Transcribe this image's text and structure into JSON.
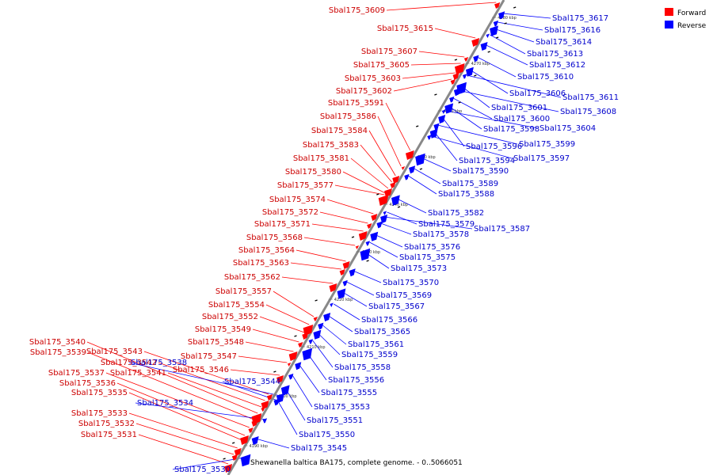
{
  "caption": "Shewanella baltica BA175, complete genome. - 0..5066051",
  "legend": [
    {
      "label": "Forward",
      "color": "#ff0000"
    },
    {
      "label": "Reverse",
      "color": "#0000ff"
    }
  ],
  "colors": {
    "forward": "#ff0000",
    "reverse": "#0000ff",
    "axis": "#888888"
  },
  "ticks": [
    "4190 kbp",
    "4200 kbp",
    "4210 kbp",
    "4220 kbp",
    "4230 kbp",
    "4240 kbp",
    "4250 kbp",
    "4260 kbp",
    "4270 kbp",
    "4280 kbp"
  ],
  "forward_genes": [
    "Sbal175_3609",
    "Sbal175_3615",
    "Sbal175_3607",
    "Sbal175_3605",
    "Sbal175_3603",
    "Sbal175_3602",
    "Sbal175_3591",
    "Sbal175_3586",
    "Sbal175_3584",
    "Sbal175_3583",
    "Sbal175_3581",
    "Sbal175_3580",
    "Sbal175_3577",
    "Sbal175_3574",
    "Sbal175_3572",
    "Sbal175_3571",
    "Sbal175_3568",
    "Sbal175_3564",
    "Sbal175_3563",
    "Sbal175_3562",
    "Sbal175_3557",
    "Sbal175_3554",
    "Sbal175_3552",
    "Sbal175_3549",
    "Sbal175_3548",
    "Sbal175_3547",
    "Sbal175_3546",
    "Sbal175_3543",
    "Sbal175_3542",
    "Sbal175_3541",
    "Sbal175_3540",
    "Sbal175_3539",
    "Sbal175_3537",
    "Sbal175_3536",
    "Sbal175_3535",
    "Sbal175_3533",
    "Sbal175_3532",
    "Sbal175_3531"
  ],
  "reverse_genes": [
    "Sbal175_3617",
    "Sbal175_3616",
    "Sbal175_3614",
    "Sbal175_3613",
    "Sbal175_3612",
    "Sbal175_3610",
    "Sbal175_3606",
    "Sbal175_3611",
    "Sbal175_3601",
    "Sbal175_3608",
    "Sbal175_3600",
    "Sbal175_3598",
    "Sbal175_3604",
    "Sbal175_3596",
    "Sbal175_3599",
    "Sbal175_3594",
    "Sbal175_3597",
    "Sbal175_3590",
    "Sbal175_3589",
    "Sbal175_3588",
    "Sbal175_3582",
    "Sbal175_3579",
    "Sbal175_3587",
    "Sbal175_3578",
    "Sbal175_3576",
    "Sbal175_3575",
    "Sbal175_3573",
    "Sbal175_3570",
    "Sbal175_3569",
    "Sbal175_3567",
    "Sbal175_3566",
    "Sbal175_3565",
    "Sbal175_3561",
    "Sbal175_3559",
    "Sbal175_3558",
    "Sbal175_3556",
    "Sbal175_3555",
    "Sbal175_3553",
    "Sbal175_3551",
    "Sbal175_3550",
    "Sbal175_3545",
    "Sbal175_3544",
    "Sbal175_3538",
    "Sbal175_3534",
    "Sbal175_3530"
  ]
}
